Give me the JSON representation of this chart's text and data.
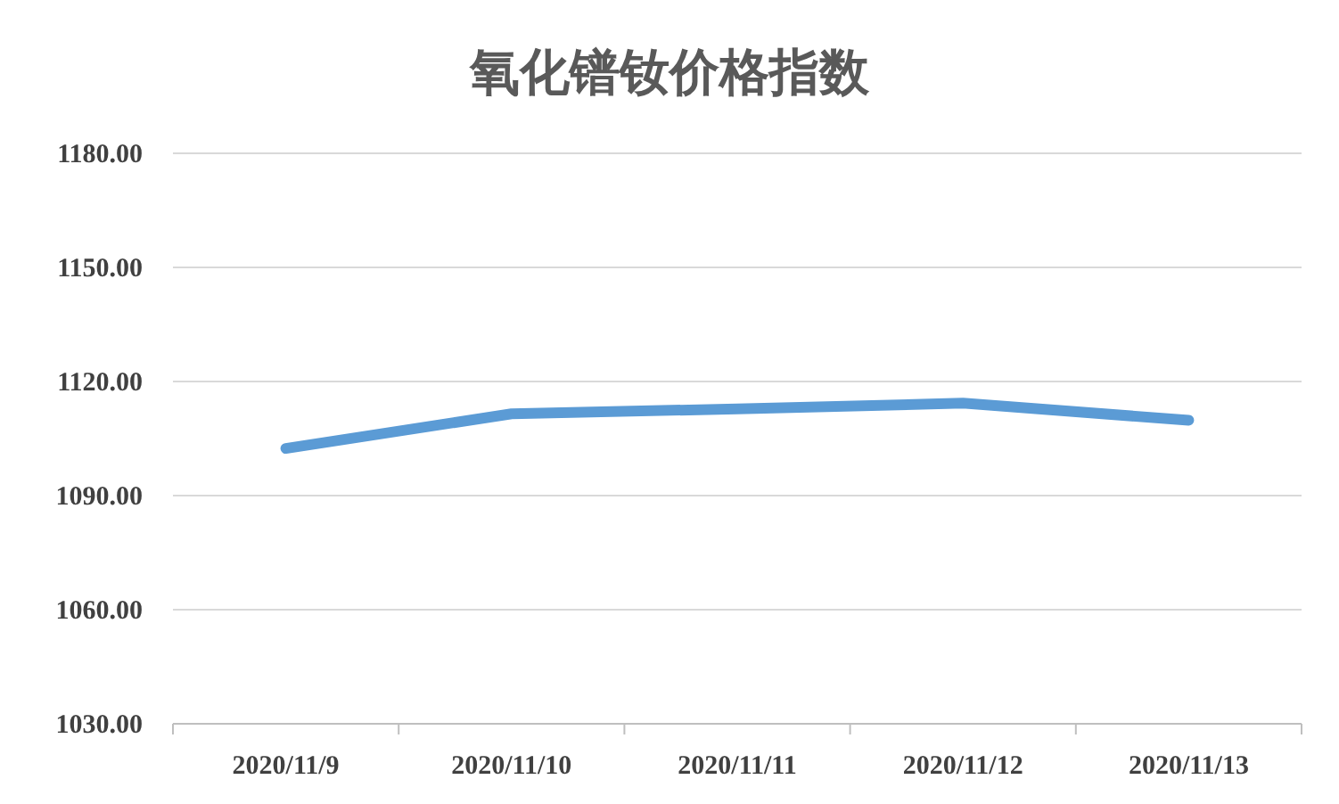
{
  "chart_data": {
    "type": "line",
    "title": "氧化镨钕价格指数",
    "categories": [
      "2020/11/9",
      "2020/11/10",
      "2020/11/11",
      "2020/11/12",
      "2020/11/13"
    ],
    "series": [
      {
        "color": "#5b9bd5",
        "values": [
          1102.4,
          1111.5,
          1112.8,
          1114.3,
          1109.8
        ]
      }
    ],
    "ylim": [
      1030,
      1180
    ],
    "yticks": [
      {
        "value": 1030,
        "label": "1030.00"
      },
      {
        "value": 1060,
        "label": "1060.00"
      },
      {
        "value": 1090,
        "label": "1090.00"
      },
      {
        "value": 1120,
        "label": "1120.00"
      },
      {
        "value": 1150,
        "label": "1150.00"
      },
      {
        "value": 1180,
        "label": "1180.00"
      }
    ],
    "grid": "y",
    "marker": "none",
    "line_style": "solid"
  }
}
